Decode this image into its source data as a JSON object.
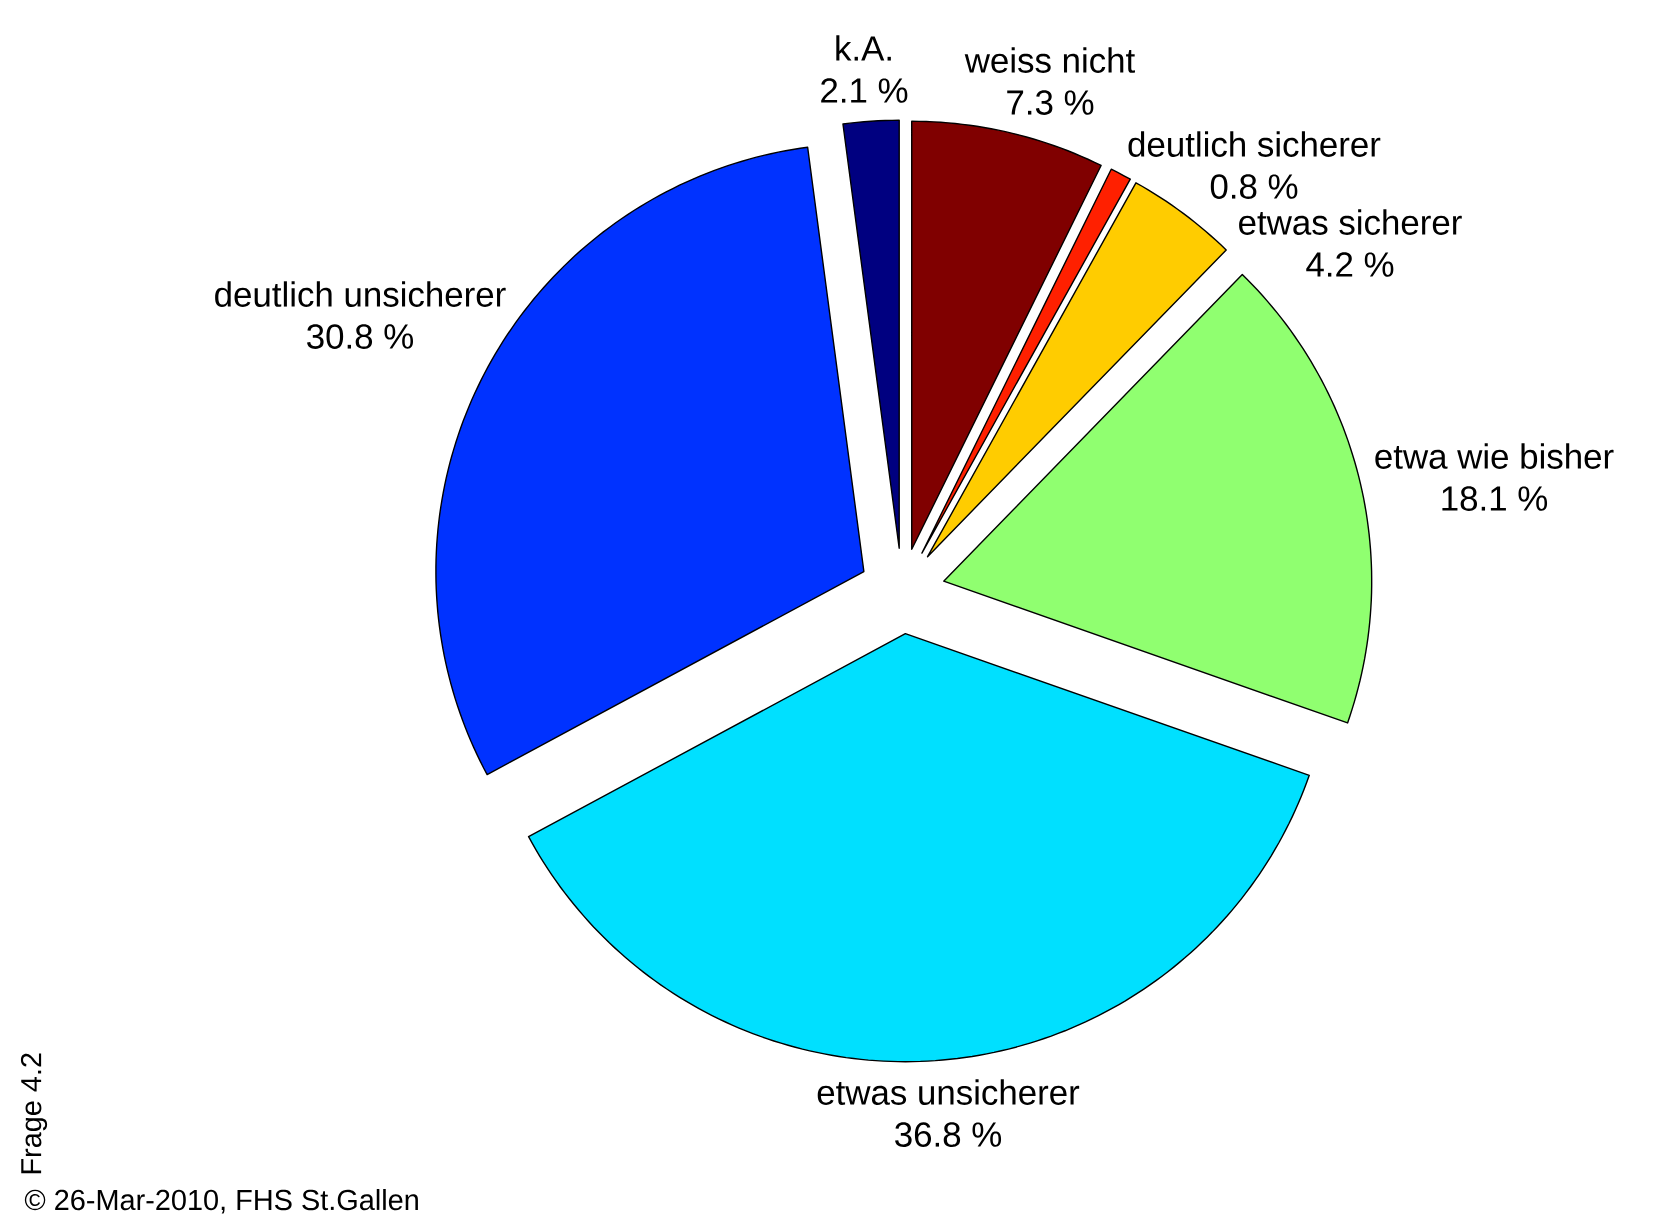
{
  "chart_data": {
    "type": "pie",
    "categories": [
      "weiss nicht",
      "deutlich sicherer",
      "etwas sicherer",
      "etwa wie bisher",
      "etwas unsicherer",
      "deutlich unsicherer",
      "k.A."
    ],
    "values": [
      7.3,
      0.8,
      4.2,
      18.1,
      36.8,
      30.8,
      2.1
    ],
    "colors": [
      "#800000",
      "#ff2000",
      "#ffcc00",
      "#90ff70",
      "#00e0ff",
      "#0032ff",
      "#000080"
    ],
    "value_labels": [
      "7.3 %",
      "0.8 %",
      "4.2 %",
      "18.1 %",
      "36.8 %",
      "30.8 %",
      "2.1 %"
    ],
    "annotations": [
      "Frage 4.2",
      "© 26-Mar-2010, FHS St.Gallen"
    ]
  }
}
